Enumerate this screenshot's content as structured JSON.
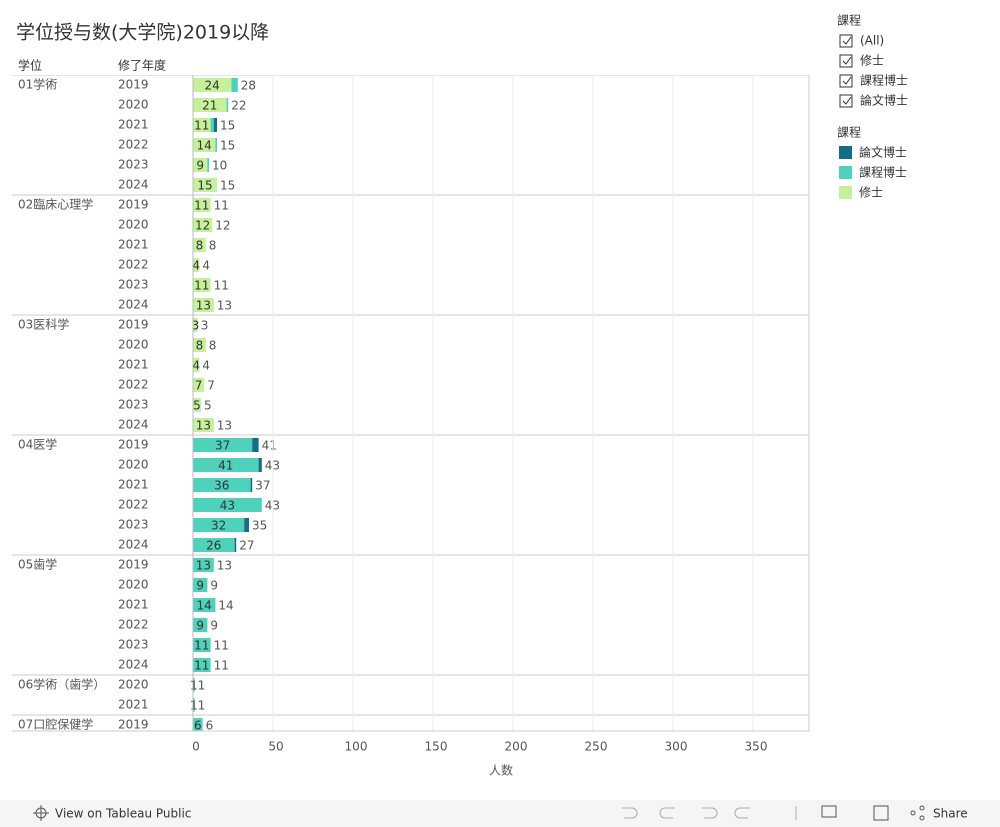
{
  "title": "学位授与数(大学院)2019以降",
  "filter": {
    "title": "課程",
    "options": [
      "(All)",
      "修士",
      "課程博士",
      "論文博士"
    ]
  },
  "chart_data": {
    "type": "bar",
    "orientation": "horizontal",
    "row_header": "学位",
    "col_header": "修了年度",
    "groups": [
      "01学術",
      null,
      null,
      null,
      null,
      null,
      "02臨床心理学",
      null,
      null,
      null,
      null,
      null,
      "03医科学",
      null,
      null,
      null,
      null,
      null,
      "04医学",
      null,
      null,
      null,
      null,
      null,
      "05歯学",
      null,
      null,
      null,
      null,
      null,
      "06学術（歯学）",
      null,
      "07口腔保健学"
    ],
    "categories": [
      "2019",
      "2020",
      "2021",
      "2022",
      "2023",
      "2024",
      "2019",
      "2020",
      "2021",
      "2022",
      "2023",
      "2024",
      "2019",
      "2020",
      "2021",
      "2022",
      "2023",
      "2024",
      "2019",
      "2020",
      "2021",
      "2022",
      "2023",
      "2024",
      "2019",
      "2020",
      "2021",
      "2022",
      "2023",
      "2024",
      "2020",
      "2021",
      "2019"
    ],
    "legend_title": "課程",
    "series": [
      {
        "name": "論文博士",
        "color": "#166d86",
        "values": [
          null,
          null,
          2,
          null,
          null,
          null,
          null,
          null,
          null,
          null,
          null,
          null,
          null,
          null,
          null,
          null,
          null,
          null,
          4,
          2,
          1,
          null,
          3,
          1,
          null,
          null,
          null,
          null,
          null,
          null,
          null,
          null,
          null
        ]
      },
      {
        "name": "課程博士",
        "color": "#4fd1bb",
        "values": [
          4,
          1,
          2,
          1,
          1,
          null,
          null,
          null,
          null,
          null,
          null,
          null,
          null,
          null,
          null,
          null,
          null,
          null,
          37,
          41,
          36,
          43,
          32,
          26,
          13,
          9,
          14,
          9,
          11,
          11,
          1,
          1,
          6
        ]
      },
      {
        "name": "修士",
        "color": "#c6f09a",
        "values": [
          24,
          21,
          11,
          14,
          9,
          15,
          11,
          12,
          8,
          4,
          11,
          13,
          3,
          8,
          4,
          7,
          5,
          13,
          null,
          null,
          null,
          null,
          null,
          null,
          null,
          null,
          null,
          null,
          null,
          null,
          null,
          null,
          null
        ]
      }
    ],
    "totals": [
      28,
      22,
      15,
      15,
      10,
      15,
      11,
      12,
      8,
      4,
      11,
      13,
      3,
      8,
      4,
      7,
      5,
      13,
      41,
      43,
      37,
      43,
      35,
      27,
      13,
      9,
      14,
      9,
      11,
      11,
      1,
      1,
      6
    ],
    "xlabel": "人数",
    "xlim": [
      0,
      385
    ],
    "xticks": [
      0,
      50,
      100,
      150,
      200,
      250,
      300,
      350
    ],
    "grid": true
  },
  "toolbar": {
    "view": "View on Tableau Public",
    "share": "Share"
  }
}
